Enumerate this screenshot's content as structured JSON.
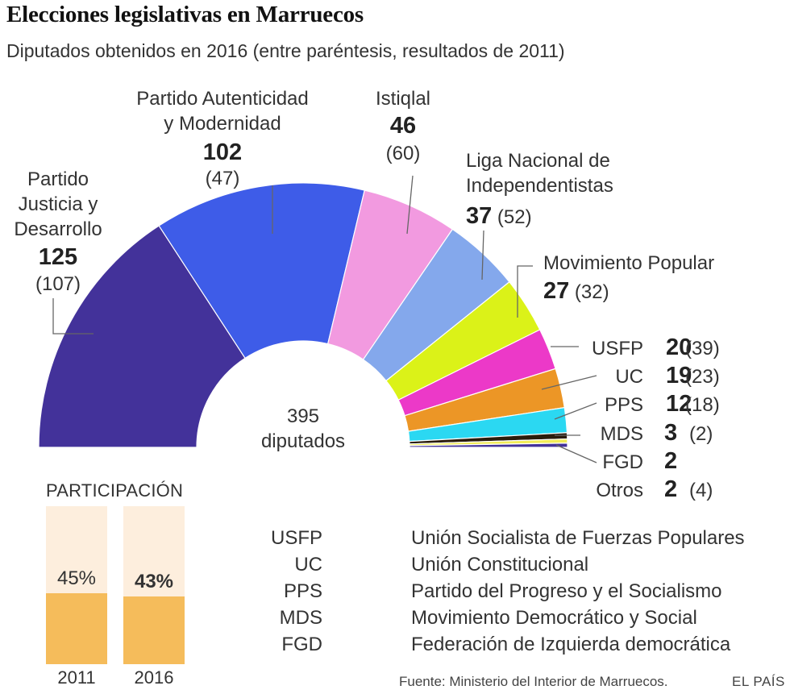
{
  "title": "Elecciones legislativas en Marruecos",
  "subtitle": "Diputados obtenidos en 2016 (entre paréntesis, resultados de 2011)",
  "chart_data": {
    "type": "pie",
    "variant": "parliament-semicircle",
    "total_seats": 395,
    "center_label": {
      "number": "395",
      "text": "diputados"
    },
    "series": [
      {
        "name": "Partido Justicia y Desarrollo",
        "label_lines": [
          "Partido",
          "Justicia y",
          "Desarrollo"
        ],
        "seats": 125,
        "seats_2011": 107,
        "seats_2011_label": "(107)",
        "color": "#43329a"
      },
      {
        "name": "Partido Autenticidad y Modernidad",
        "label_lines": [
          "Partido Autenticidad",
          "y Modernidad"
        ],
        "seats": 102,
        "seats_2011": 47,
        "seats_2011_label": "(47)",
        "color": "#3e5ce8"
      },
      {
        "name": "Istiqlal",
        "label_lines": [
          "Istiqlal"
        ],
        "seats": 46,
        "seats_2011": 60,
        "seats_2011_label": "(60)",
        "color": "#f29ae0"
      },
      {
        "name": "Liga Nacional de Independentistas",
        "label_lines": [
          "Liga Nacional de",
          "Independentistas"
        ],
        "seats": 37,
        "seats_2011": 52,
        "seats_2011_label": "(52)",
        "color": "#84a8ec"
      },
      {
        "name": "Movimiento Popular",
        "label_lines": [
          "Movimiento Popular"
        ],
        "seats": 27,
        "seats_2011": 32,
        "seats_2011_label": "(32)",
        "color": "#dbf218"
      },
      {
        "name": "USFP",
        "label_lines": [
          "USFP"
        ],
        "seats": 20,
        "seats_2011": 39,
        "seats_2011_label": "(39)",
        "color": "#ec39c8"
      },
      {
        "name": "UC",
        "label_lines": [
          "UC"
        ],
        "seats": 19,
        "seats_2011": 23,
        "seats_2011_label": "(23)",
        "color": "#ec9626"
      },
      {
        "name": "PPS",
        "label_lines": [
          "PPS"
        ],
        "seats": 12,
        "seats_2011": 18,
        "seats_2011_label": "(18)",
        "color": "#2bd8f2"
      },
      {
        "name": "MDS",
        "label_lines": [
          "MDS"
        ],
        "seats": 3,
        "seats_2011": 2,
        "seats_2011_label": "(2)",
        "color": "#2a1c0c"
      },
      {
        "name": "FGD",
        "label_lines": [
          "FGD"
        ],
        "seats": 2,
        "seats_2011": null,
        "seats_2011_label": "",
        "color": "#f2ec58"
      },
      {
        "name": "Otros",
        "label_lines": [
          "Otros"
        ],
        "seats": 2,
        "seats_2011": 4,
        "seats_2011_label": "(4)",
        "color": "#43329a"
      }
    ]
  },
  "participation": {
    "title": "PARTICIPACIÓN",
    "bars": [
      {
        "year": "2011",
        "value": 45,
        "label": "45%"
      },
      {
        "year": "2016",
        "value": 43,
        "label": "43%"
      }
    ],
    "colors": {
      "fill": "#f5bc5b",
      "background": "#fdeedd"
    }
  },
  "glossary": [
    {
      "abbr": "USFP",
      "name": "Unión Socialista de Fuerzas Populares"
    },
    {
      "abbr": "UC",
      "name": "Unión Constitucional"
    },
    {
      "abbr": "PPS",
      "name": "Partido del Progreso y el Socialismo"
    },
    {
      "abbr": "MDS",
      "name": "Movimiento Democrático y Social"
    },
    {
      "abbr": "FGD",
      "name": "Federación de Izquierda democrática"
    }
  ],
  "source": "Fuente: Ministerio del Interior de Marruecos.",
  "brand": "EL PAÍS"
}
